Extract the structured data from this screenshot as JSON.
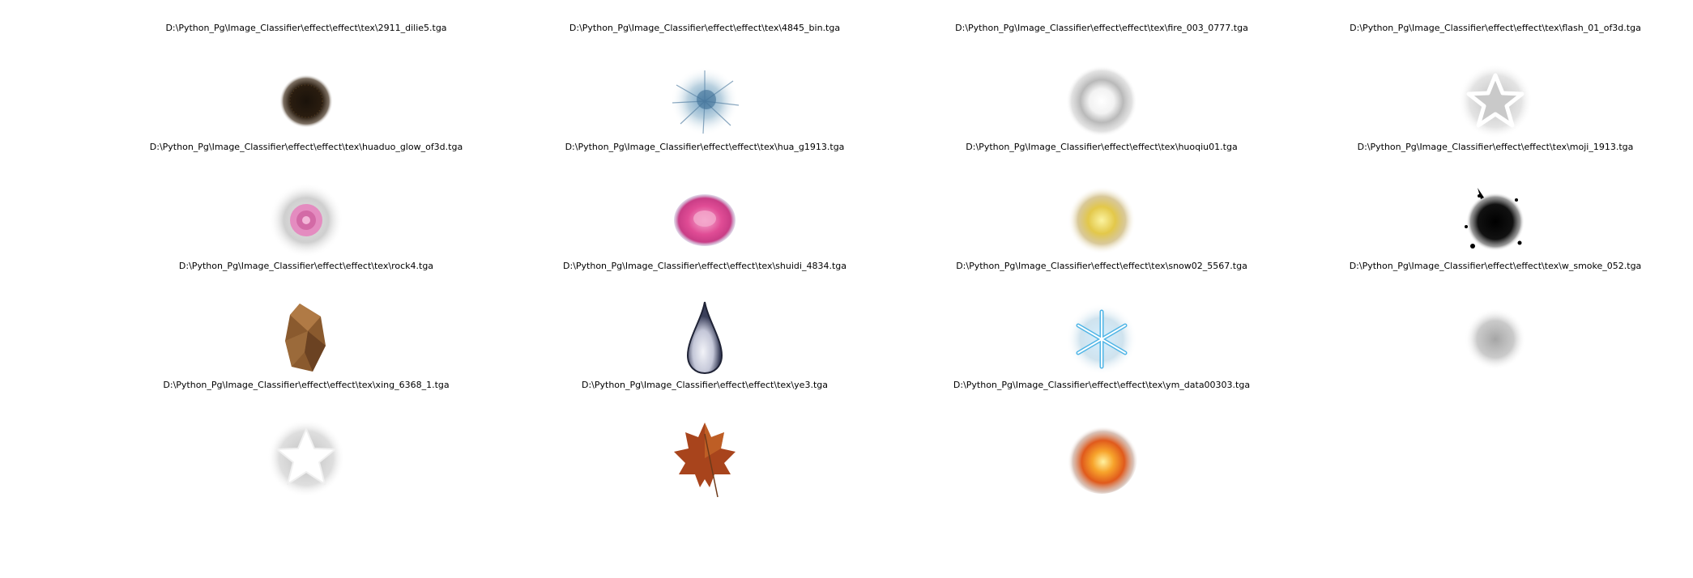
{
  "items": [
    {
      "path": "D:\\Python_Pg\\Image_Classifier\\effect\\effect\\tex\\2911_dilie5.tga",
      "icon": "dark-fuzzy-sphere"
    },
    {
      "path": "D:\\Python_Pg\\Image_Classifier\\effect\\effect\\tex\\4845_bin.tga",
      "icon": "ice-shard-burst"
    },
    {
      "path": "D:\\Python_Pg\\Image_Classifier\\effect\\effect\\tex\\fire_003_0777.tga",
      "icon": "grey-smoke-ring"
    },
    {
      "path": "D:\\Python_Pg\\Image_Classifier\\effect\\effect\\tex\\flash_01_of3d.tga",
      "icon": "glowing-star-outline"
    },
    {
      "path": "D:\\Python_Pg\\Image_Classifier\\effect\\effect\\tex\\huaduo_glow_of3d.tga",
      "icon": "pink-flower-glow"
    },
    {
      "path": "D:\\Python_Pg\\Image_Classifier\\effect\\effect\\tex\\hua_g1913.tga",
      "icon": "pink-rose"
    },
    {
      "path": "D:\\Python_Pg\\Image_Classifier\\effect\\effect\\tex\\huoqiu01.tga",
      "icon": "yellow-fireball"
    },
    {
      "path": "D:\\Python_Pg\\Image_Classifier\\effect\\effect\\tex\\moji_1913.tga",
      "icon": "black-ink-splash"
    },
    {
      "path": "D:\\Python_Pg\\Image_Classifier\\effect\\effect\\tex\\rock4.tga",
      "icon": "brown-rock"
    },
    {
      "path": "D:\\Python_Pg\\Image_Classifier\\effect\\effect\\tex\\shuidi_4834.tga",
      "icon": "water-drop"
    },
    {
      "path": "D:\\Python_Pg\\Image_Classifier\\effect\\effect\\tex\\snow02_5567.tga",
      "icon": "blue-snowflake"
    },
    {
      "path": "D:\\Python_Pg\\Image_Classifier\\effect\\effect\\tex\\w_smoke_052.tga",
      "icon": "grey-smoke-puff"
    },
    {
      "path": "D:\\Python_Pg\\Image_Classifier\\effect\\effect\\tex\\xing_6368_1.tga",
      "icon": "white-star-glow"
    },
    {
      "path": "D:\\Python_Pg\\Image_Classifier\\effect\\effect\\tex\\ye3.tga",
      "icon": "autumn-leaf"
    },
    {
      "path": "D:\\Python_Pg\\Image_Classifier\\effect\\effect\\tex\\ym_data00303.tga",
      "icon": "orange-explosion"
    }
  ]
}
